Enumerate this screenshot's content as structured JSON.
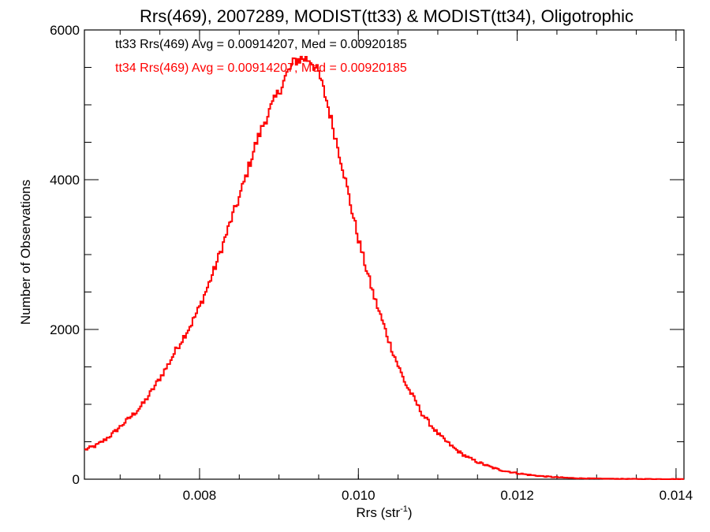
{
  "chart_data": {
    "type": "line",
    "step": true,
    "title": "Rrs(469), 2007289, MODIST(tt33) & MODIST(tt34), Oligotrophic",
    "xlabel": "Rrs (str",
    "xlabel_sup": "-1",
    "xlabel_close": ")",
    "ylabel": "Number of Observations",
    "xlim": [
      0.00655,
      0.0141
    ],
    "ylim": [
      0,
      6000
    ],
    "x_ticks": [
      0.008,
      0.01,
      0.012,
      0.014
    ],
    "x_tick_labels": [
      "0.008",
      "0.010",
      "0.012",
      "0.014"
    ],
    "x_minor_step": 0.0005,
    "y_ticks": [
      0,
      2000,
      4000,
      6000
    ],
    "y_tick_labels": [
      "0",
      "2000",
      "4000",
      "6000"
    ],
    "y_minor_step": 500,
    "annotations": [
      {
        "text": "tt33 Rrs(469) Avg = 0.00914207, Med = 0.00920185",
        "color": "#000000"
      },
      {
        "text": "tt34 Rrs(469) Avg = 0.00914207, Med = 0.00920185",
        "color": "#ff0000"
      }
    ],
    "series": [
      {
        "color": "#ff0000",
        "x": [
          0.00655,
          0.0067,
          0.0068,
          0.0069,
          0.007,
          0.0071,
          0.0072,
          0.0073,
          0.0074,
          0.0075,
          0.0076,
          0.0077,
          0.0078,
          0.0079,
          0.008,
          0.0081,
          0.0082,
          0.0083,
          0.0084,
          0.0085,
          0.0086,
          0.0087,
          0.0088,
          0.0089,
          0.009,
          0.0091,
          0.0092,
          0.0093,
          0.0094,
          0.0095,
          0.0096,
          0.0097,
          0.0098,
          0.0099,
          0.01,
          0.0101,
          0.0102,
          0.0103,
          0.0104,
          0.0105,
          0.0106,
          0.0107,
          0.0108,
          0.0109,
          0.011,
          0.0111,
          0.0112,
          0.0113,
          0.0114,
          0.0115,
          0.0116,
          0.0117,
          0.0118,
          0.0119,
          0.012,
          0.0121,
          0.0122,
          0.0123,
          0.0124,
          0.0125,
          0.0126,
          0.0127,
          0.0128,
          0.0129,
          0.013,
          0.0132,
          0.0134,
          0.0136,
          0.0138,
          0.0141
        ],
        "y": [
          390,
          450,
          520,
          600,
          700,
          800,
          900,
          1020,
          1180,
          1350,
          1520,
          1720,
          1900,
          2080,
          2300,
          2560,
          2840,
          3150,
          3470,
          3760,
          4100,
          4450,
          4730,
          4960,
          5180,
          5410,
          5590,
          5620,
          5600,
          5420,
          5060,
          4620,
          4180,
          3680,
          3210,
          2810,
          2430,
          2120,
          1800,
          1520,
          1260,
          1080,
          880,
          740,
          610,
          510,
          420,
          340,
          280,
          230,
          190,
          150,
          120,
          100,
          80,
          65,
          52,
          42,
          33,
          26,
          20,
          15,
          12,
          10,
          8,
          6,
          4,
          3,
          2,
          2
        ]
      }
    ]
  }
}
